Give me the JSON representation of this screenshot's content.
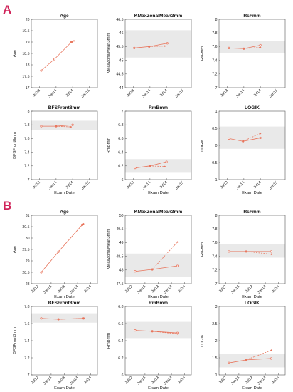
{
  "panel_labels": [
    "A",
    "B"
  ],
  "chart_data": [
    {
      "panel": "A",
      "type": "line",
      "title": "Age",
      "xlabel": "",
      "ylabel": "Age",
      "xticks": [
        "Jul13",
        "Jan14",
        "Jul14",
        "Jan15"
      ],
      "yticks": [
        "17",
        "17.5",
        "18",
        "18.5",
        "19",
        "19.5",
        "20"
      ],
      "ylim": [
        17,
        20
      ],
      "band": null,
      "series": [
        {
          "style": "solid",
          "x": [
            0.1,
            0.9,
            1.93
          ],
          "values": [
            17.75,
            18.25,
            19.0
          ]
        },
        {
          "style": "dashed",
          "x": [
            1.93,
            2.08
          ],
          "values": [
            19.0,
            19.05
          ]
        }
      ]
    },
    {
      "panel": "A",
      "type": "line",
      "title": "KMaxZonalMean3mm",
      "xlabel": "",
      "ylabel": "KMaxZonalMean3mm",
      "xticks": [
        "Jul13",
        "Jan14",
        "Jul14",
        "Jan15"
      ],
      "yticks": [
        "44",
        "44.5",
        "45",
        "45.5",
        "46",
        "46.5"
      ],
      "ylim": [
        44,
        46.5
      ],
      "band": [
        45.1,
        46.1
      ],
      "series": [
        {
          "style": "solid",
          "x": [
            0.05,
            0.95,
            2.05
          ],
          "values": [
            45.45,
            45.5,
            45.62
          ]
        },
        {
          "style": "dashed",
          "x": [
            0.95,
            1.9
          ],
          "values": [
            45.5,
            45.52
          ]
        }
      ]
    },
    {
      "panel": "A",
      "type": "line",
      "title": "RsFmm",
      "xlabel": "",
      "ylabel": "RsFmm",
      "xticks": [
        "Jul13",
        "Jan14",
        "Jul14",
        "Jan15"
      ],
      "yticks": [
        "7",
        "7.2",
        "7.4",
        "7.6",
        "7.8",
        "8"
      ],
      "ylim": [
        7,
        8
      ],
      "band": [
        7.5,
        7.68
      ],
      "series": [
        {
          "style": "solid",
          "x": [
            0.1,
            1.0,
            2.0
          ],
          "values": [
            7.58,
            7.57,
            7.62
          ]
        },
        {
          "style": "dashed",
          "x": [
            1.0,
            2.0
          ],
          "values": [
            7.57,
            7.59
          ]
        }
      ]
    },
    {
      "panel": "A",
      "type": "line",
      "title": "BFSFront8mm",
      "xlabel": "Exam Date",
      "ylabel": "BFSFront8mm",
      "xticks": [
        "Jul13",
        "Jan14",
        "Jul14",
        "Jan15"
      ],
      "yticks": [
        "7",
        "7.2",
        "7.4",
        "7.6",
        "7.8",
        "8"
      ],
      "ylim": [
        7,
        8
      ],
      "band": [
        7.72,
        7.86
      ],
      "series": [
        {
          "style": "solid",
          "x": [
            0.1,
            1.0,
            2.0
          ],
          "values": [
            7.78,
            7.78,
            7.8
          ]
        },
        {
          "style": "dashed",
          "x": [
            1.0,
            1.9
          ],
          "values": [
            7.78,
            7.77
          ]
        }
      ]
    },
    {
      "panel": "A",
      "type": "line",
      "title": "RmBmm",
      "xlabel": "Exam Date",
      "ylabel": "RmBmm",
      "xticks": [
        "Jul13",
        "Jan14",
        "Jul14",
        "Jan15"
      ],
      "yticks": [
        "6",
        "6.2",
        "6.4",
        "6.6",
        "6.8",
        "7"
      ],
      "ylim": [
        6,
        7
      ],
      "band": [
        6.1,
        6.3
      ],
      "series": [
        {
          "style": "solid",
          "x": [
            0.1,
            1.0,
            2.0
          ],
          "values": [
            6.17,
            6.2,
            6.26
          ]
        },
        {
          "style": "dashed",
          "x": [
            1.0,
            1.9
          ],
          "values": [
            6.2,
            6.19
          ]
        }
      ]
    },
    {
      "panel": "A",
      "type": "line",
      "title": "LOGIK",
      "xlabel": "Exam Date",
      "ylabel": "LOGIK",
      "xticks": [
        "Jul13",
        "Jan14",
        "Jul14",
        "Jan15"
      ],
      "yticks": [
        "-1",
        "-0.5",
        "0",
        "0.5",
        "1"
      ],
      "ylim": [
        -1,
        1
      ],
      "band": [
        -0.1,
        0.55
      ],
      "series": [
        {
          "style": "solid",
          "x": [
            0.1,
            0.95,
            2.0
          ],
          "values": [
            0.2,
            0.12,
            0.22
          ]
        },
        {
          "style": "dashed",
          "x": [
            0.95,
            2.0
          ],
          "values": [
            0.12,
            0.35
          ]
        }
      ]
    },
    {
      "panel": "B",
      "type": "line",
      "title": "Age",
      "xlabel": "Exam Date",
      "ylabel": "Age",
      "xticks": [
        "Jul12",
        "Jan13",
        "Jul13",
        "Jan14",
        "Jul14"
      ],
      "yticks": [
        "28",
        "28.5",
        "29",
        "29.5",
        "30",
        "30.5",
        "31"
      ],
      "ylim": [
        28,
        31
      ],
      "band": null,
      "series": [
        {
          "style": "solid",
          "x": [
            0.25,
            1.55,
            3.35
          ],
          "values": [
            28.5,
            29.4,
            30.58
          ]
        },
        {
          "style": "dashed",
          "x": [
            3.35,
            3.45
          ],
          "values": [
            30.58,
            30.62
          ]
        }
      ]
    },
    {
      "panel": "B",
      "type": "line",
      "title": "KMaxZonalMean3mm",
      "xlabel": "Exam Date",
      "ylabel": "KMaxZonalMean3mm",
      "xticks": [
        "Jul12",
        "Jan13",
        "Jul13",
        "Jan14",
        "Jul14"
      ],
      "yticks": [
        "47.5",
        "48",
        "48.5",
        "49",
        "49.5",
        "50"
      ],
      "ylim": [
        47.5,
        50
      ],
      "band": [
        47.75,
        48.6
      ],
      "series": [
        {
          "style": "solid",
          "x": [
            0.25,
            1.55,
            3.45
          ],
          "values": [
            47.95,
            48.02,
            48.15
          ]
        },
        {
          "style": "dashed",
          "x": [
            1.55,
            3.45
          ],
          "values": [
            48.02,
            49.02
          ]
        }
      ]
    },
    {
      "panel": "B",
      "type": "line",
      "title": "RsFmm",
      "xlabel": "Exam Date",
      "ylabel": "RsFmm",
      "xticks": [
        "Jul12",
        "Jan13",
        "Jul13",
        "Jan14",
        "Jul14"
      ],
      "yticks": [
        "7",
        "7.2",
        "7.4",
        "7.6",
        "7.8",
        "8"
      ],
      "ylim": [
        7,
        8
      ],
      "band": [
        7.38,
        7.58
      ],
      "series": [
        {
          "style": "solid",
          "x": [
            0.25,
            1.55,
            3.45
          ],
          "values": [
            7.47,
            7.47,
            7.47
          ]
        },
        {
          "style": "dashed",
          "x": [
            1.55,
            3.45
          ],
          "values": [
            7.47,
            7.43
          ]
        }
      ]
    },
    {
      "panel": "B",
      "type": "line",
      "title": "BFSFront8mm",
      "xlabel": "Exam Date",
      "ylabel": "BFSFront8mm",
      "xticks": [
        "Jul12",
        "Jan13",
        "Jul13",
        "Jan14",
        "Jul14"
      ],
      "yticks": [
        "7",
        "7.2",
        "7.4",
        "7.6",
        "7.8"
      ],
      "ylim": [
        7,
        7.8
      ],
      "band": [
        7.61,
        7.72
      ],
      "series": [
        {
          "style": "solid",
          "x": [
            0.25,
            1.55,
            3.45
          ],
          "values": [
            7.66,
            7.65,
            7.66
          ]
        },
        {
          "style": "dashed",
          "x": [
            1.55,
            3.45
          ],
          "values": [
            7.65,
            7.66
          ]
        }
      ]
    },
    {
      "panel": "B",
      "type": "line",
      "title": "RmBmm",
      "xlabel": "Exam Date",
      "ylabel": "RmBmm",
      "xticks": [
        "Jul12",
        "Jan13",
        "Jul13",
        "Jan14",
        "Jul14"
      ],
      "yticks": [
        "6",
        "6.2",
        "6.4",
        "6.6",
        "6.8"
      ],
      "ylim": [
        6,
        6.8
      ],
      "band": [
        6.43,
        6.62
      ],
      "series": [
        {
          "style": "solid",
          "x": [
            0.25,
            1.55,
            3.45
          ],
          "values": [
            6.52,
            6.51,
            6.49
          ]
        },
        {
          "style": "dashed",
          "x": [
            1.55,
            3.45
          ],
          "values": [
            6.51,
            6.48
          ]
        }
      ]
    },
    {
      "panel": "B",
      "type": "line",
      "title": "LOGIK",
      "xlabel": "Exam Date",
      "ylabel": "LOGIK",
      "xticks": [
        "Jul12",
        "Jan13",
        "Jul13",
        "Jan14",
        "Jul14"
      ],
      "yticks": [
        "1",
        "1.5",
        "2",
        "2.5",
        "3"
      ],
      "ylim": [
        1,
        3
      ],
      "band": [
        1.22,
        1.62
      ],
      "series": [
        {
          "style": "solid",
          "x": [
            0.25,
            1.55,
            3.45
          ],
          "values": [
            1.35,
            1.44,
            1.48
          ]
        },
        {
          "style": "dashed",
          "x": [
            1.55,
            3.45
          ],
          "values": [
            1.44,
            1.72
          ]
        }
      ]
    }
  ]
}
